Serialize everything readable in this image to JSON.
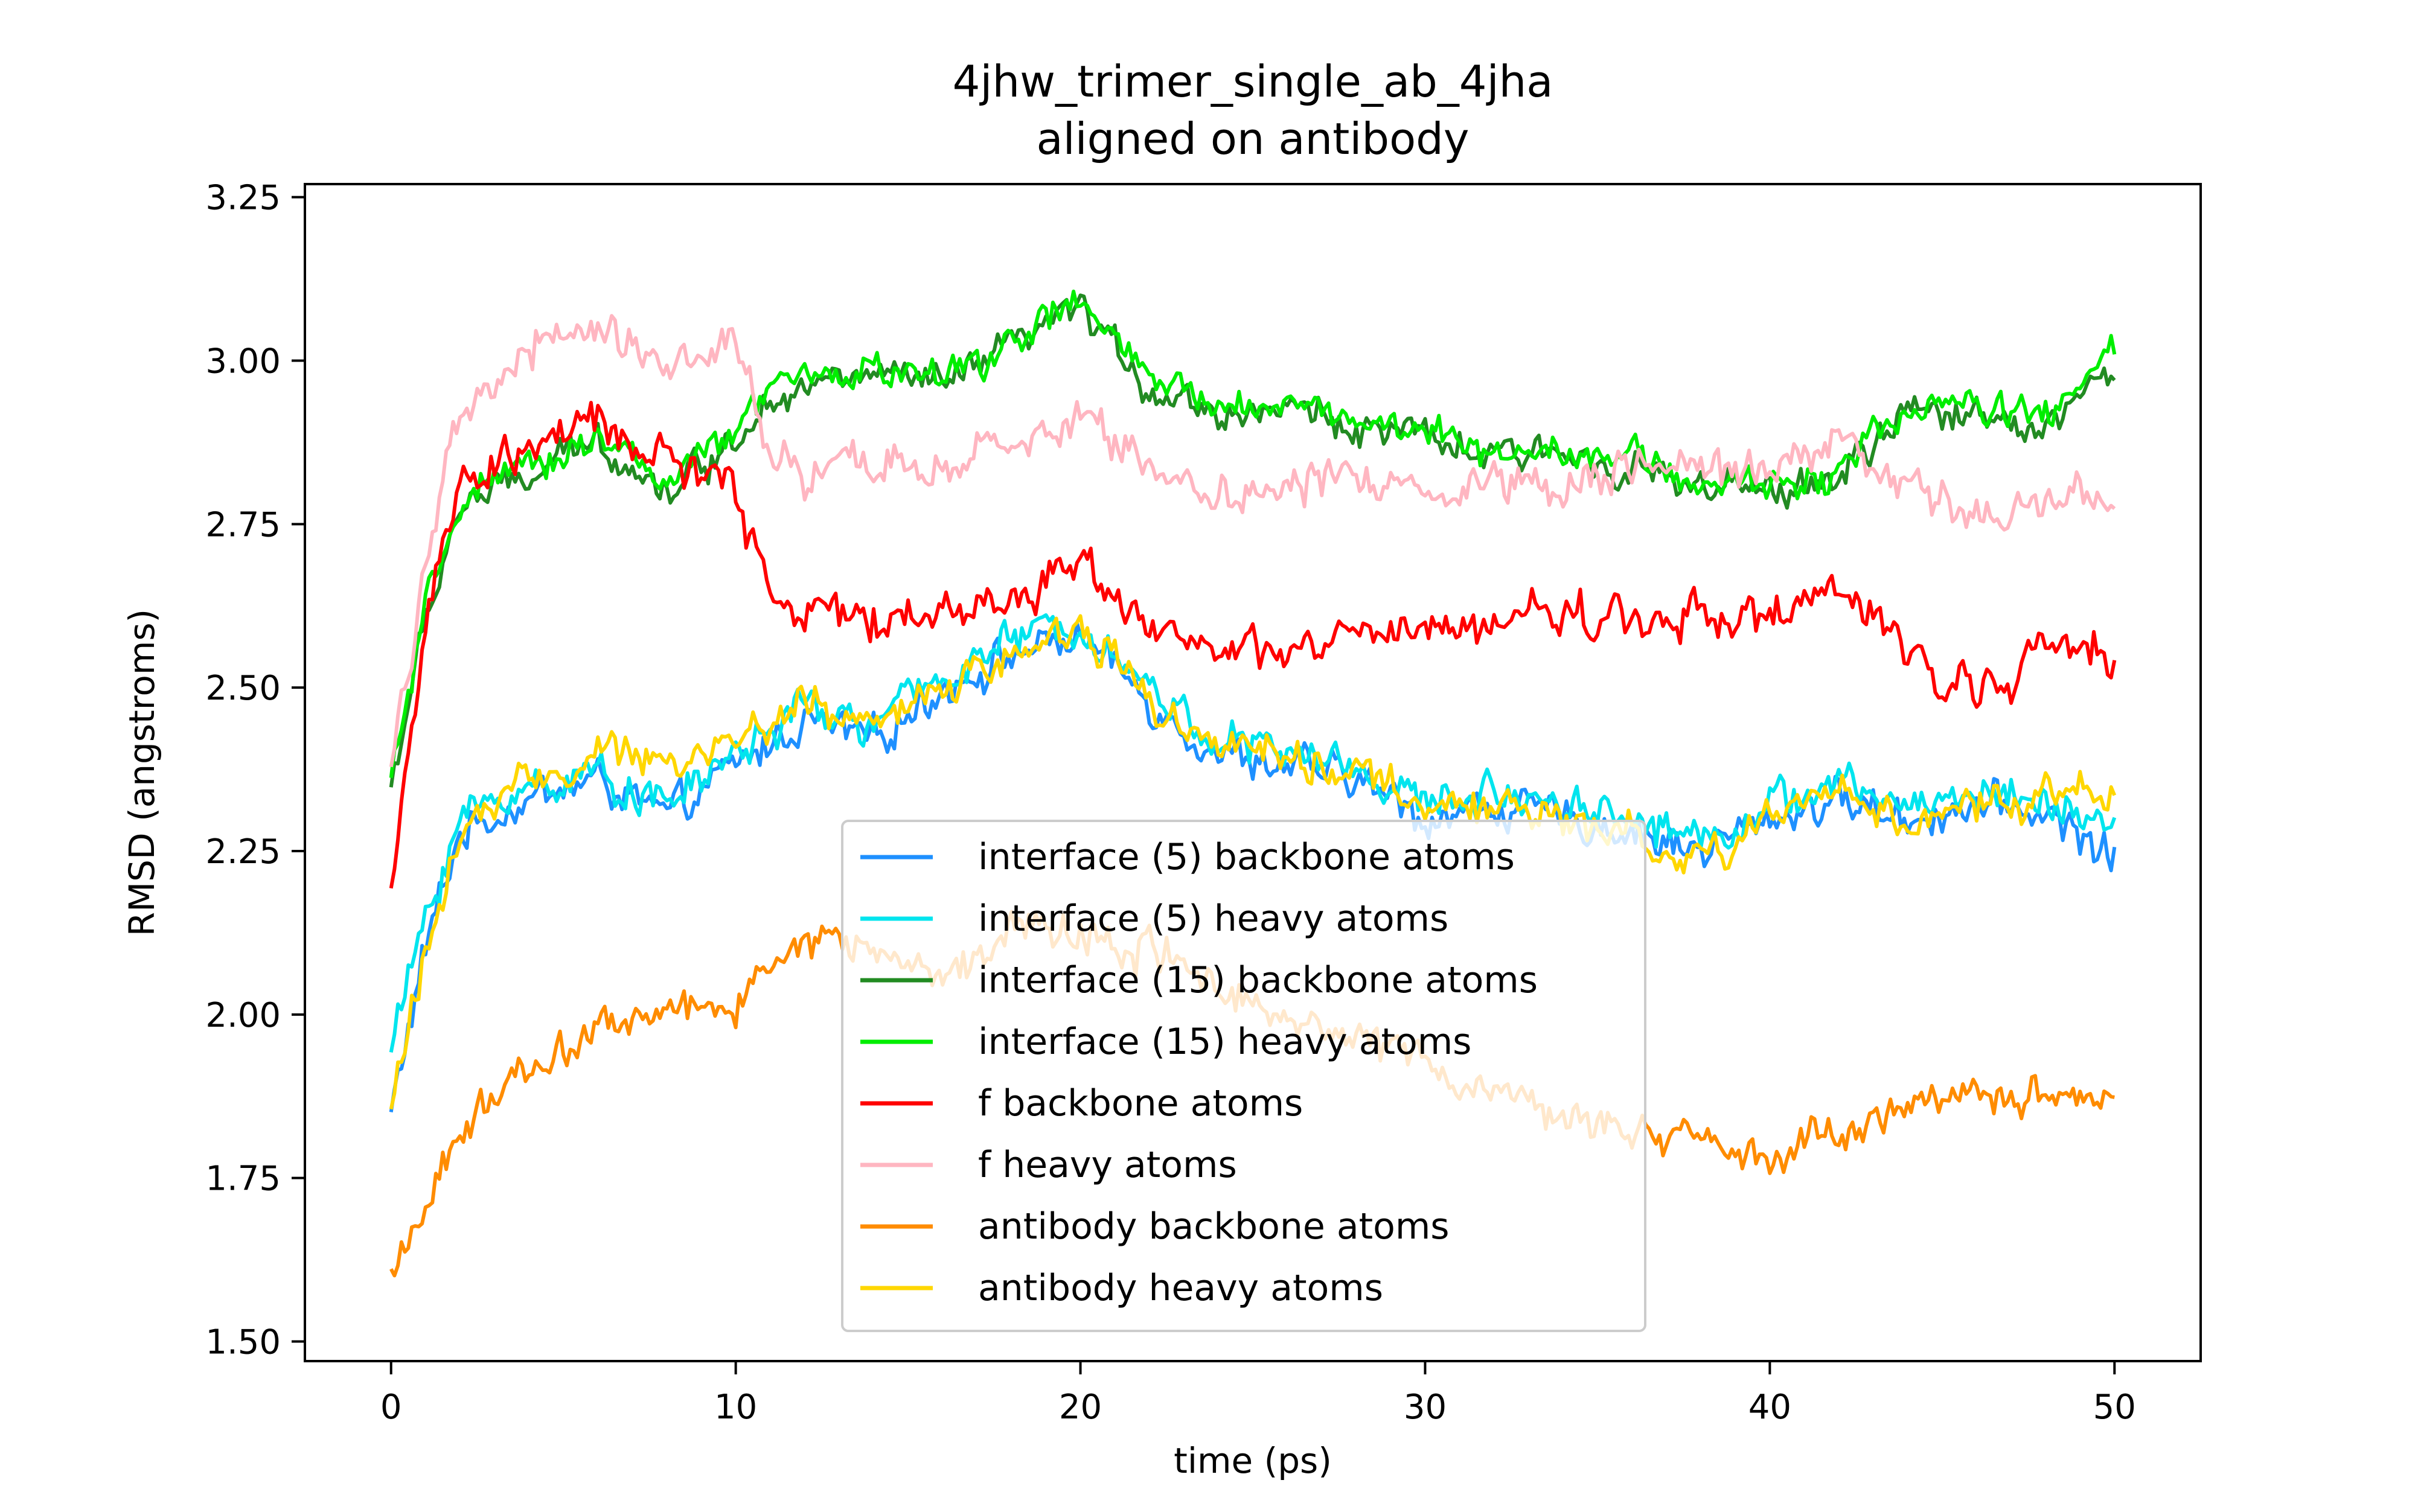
{
  "chart_data": {
    "type": "line",
    "title": "4jhw_trimer_single_ab_4jha",
    "subtitle": "aligned on antibody",
    "xlabel": "time (ps)",
    "ylabel": "RMSD (angstroms)",
    "xlim": [
      -2.5,
      52.5
    ],
    "ylim": [
      1.47,
      3.27
    ],
    "xticks": [
      "0",
      "10",
      "20",
      "30",
      "40",
      "50"
    ],
    "yticks": [
      "1.50",
      "1.75",
      "2.00",
      "2.25",
      "2.50",
      "2.75",
      "3.00",
      "3.25"
    ],
    "grid": false,
    "legend_position": "lower-center",
    "series": [
      {
        "name": "interface (5) backbone atoms",
        "color": "#1e90ff",
        "noise": 0.045,
        "points": [
          [
            0,
            1.85
          ],
          [
            1,
            2.1
          ],
          [
            2,
            2.28
          ],
          [
            4,
            2.33
          ],
          [
            6,
            2.36
          ],
          [
            8,
            2.3
          ],
          [
            10,
            2.38
          ],
          [
            12,
            2.45
          ],
          [
            14,
            2.42
          ],
          [
            16,
            2.5
          ],
          [
            18,
            2.55
          ],
          [
            20,
            2.58
          ],
          [
            22,
            2.48
          ],
          [
            24,
            2.4
          ],
          [
            26,
            2.38
          ],
          [
            28,
            2.36
          ],
          [
            30,
            2.3
          ],
          [
            32,
            2.32
          ],
          [
            34,
            2.3
          ],
          [
            36,
            2.28
          ],
          [
            38,
            2.25
          ],
          [
            40,
            2.3
          ],
          [
            42,
            2.33
          ],
          [
            44,
            2.3
          ],
          [
            46,
            2.32
          ],
          [
            48,
            2.31
          ],
          [
            50,
            2.24
          ]
        ]
      },
      {
        "name": "interface (5) heavy atoms",
        "color": "#00e5ee",
        "noise": 0.045,
        "points": [
          [
            0,
            1.95
          ],
          [
            1,
            2.15
          ],
          [
            2,
            2.3
          ],
          [
            4,
            2.35
          ],
          [
            6,
            2.37
          ],
          [
            8,
            2.32
          ],
          [
            10,
            2.4
          ],
          [
            12,
            2.47
          ],
          [
            14,
            2.44
          ],
          [
            16,
            2.52
          ],
          [
            18,
            2.57
          ],
          [
            20,
            2.6
          ],
          [
            22,
            2.5
          ],
          [
            24,
            2.42
          ],
          [
            26,
            2.4
          ],
          [
            28,
            2.38
          ],
          [
            30,
            2.32
          ],
          [
            32,
            2.34
          ],
          [
            34,
            2.33
          ],
          [
            36,
            2.3
          ],
          [
            38,
            2.27
          ],
          [
            40,
            2.32
          ],
          [
            42,
            2.35
          ],
          [
            44,
            2.32
          ],
          [
            46,
            2.34
          ],
          [
            48,
            2.33
          ],
          [
            50,
            2.28
          ]
        ]
      },
      {
        "name": "interface (15) backbone atoms",
        "color": "#228b22",
        "noise": 0.04,
        "points": [
          [
            0,
            2.35
          ],
          [
            1,
            2.6
          ],
          [
            2,
            2.78
          ],
          [
            4,
            2.82
          ],
          [
            6,
            2.88
          ],
          [
            8,
            2.8
          ],
          [
            10,
            2.88
          ],
          [
            11,
            2.95
          ],
          [
            12,
            2.96
          ],
          [
            14,
            2.98
          ],
          [
            16,
            2.96
          ],
          [
            18,
            3.02
          ],
          [
            20,
            3.08
          ],
          [
            22,
            2.96
          ],
          [
            24,
            2.92
          ],
          [
            26,
            2.93
          ],
          [
            28,
            2.9
          ],
          [
            30,
            2.88
          ],
          [
            32,
            2.85
          ],
          [
            34,
            2.86
          ],
          [
            36,
            2.84
          ],
          [
            38,
            2.8
          ],
          [
            40,
            2.8
          ],
          [
            42,
            2.82
          ],
          [
            44,
            2.92
          ],
          [
            46,
            2.92
          ],
          [
            48,
            2.9
          ],
          [
            50,
            2.99
          ]
        ]
      },
      {
        "name": "interface (15) heavy atoms",
        "color": "#00ee00",
        "noise": 0.04,
        "points": [
          [
            0,
            2.36
          ],
          [
            1,
            2.61
          ],
          [
            2,
            2.79
          ],
          [
            4,
            2.83
          ],
          [
            6,
            2.89
          ],
          [
            8,
            2.81
          ],
          [
            10,
            2.89
          ],
          [
            11,
            2.96
          ],
          [
            12,
            2.97
          ],
          [
            14,
            2.99
          ],
          [
            16,
            2.97
          ],
          [
            18,
            3.03
          ],
          [
            20,
            3.09
          ],
          [
            22,
            2.97
          ],
          [
            24,
            2.93
          ],
          [
            26,
            2.94
          ],
          [
            28,
            2.91
          ],
          [
            30,
            2.89
          ],
          [
            32,
            2.86
          ],
          [
            34,
            2.87
          ],
          [
            36,
            2.85
          ],
          [
            38,
            2.81
          ],
          [
            40,
            2.81
          ],
          [
            42,
            2.83
          ],
          [
            44,
            2.93
          ],
          [
            46,
            2.93
          ],
          [
            48,
            2.91
          ],
          [
            50,
            3.02
          ]
        ]
      },
      {
        "name": "f backbone atoms",
        "color": "#ff0000",
        "noise": 0.05,
        "points": [
          [
            0,
            2.2
          ],
          [
            1,
            2.6
          ],
          [
            2,
            2.8
          ],
          [
            4,
            2.87
          ],
          [
            6,
            2.9
          ],
          [
            8,
            2.85
          ],
          [
            10,
            2.8
          ],
          [
            11,
            2.65
          ],
          [
            12,
            2.62
          ],
          [
            14,
            2.6
          ],
          [
            16,
            2.62
          ],
          [
            18,
            2.63
          ],
          [
            20,
            2.7
          ],
          [
            22,
            2.6
          ],
          [
            24,
            2.55
          ],
          [
            26,
            2.55
          ],
          [
            28,
            2.58
          ],
          [
            30,
            2.58
          ],
          [
            32,
            2.6
          ],
          [
            34,
            2.62
          ],
          [
            36,
            2.6
          ],
          [
            38,
            2.62
          ],
          [
            40,
            2.6
          ],
          [
            42,
            2.65
          ],
          [
            44,
            2.55
          ],
          [
            46,
            2.5
          ],
          [
            48,
            2.55
          ],
          [
            50,
            2.56
          ]
        ]
      },
      {
        "name": "f heavy atoms",
        "color": "#ffb6c1",
        "noise": 0.05,
        "points": [
          [
            0,
            2.38
          ],
          [
            1,
            2.7
          ],
          [
            2,
            2.9
          ],
          [
            4,
            3.02
          ],
          [
            6,
            3.05
          ],
          [
            8,
            3.0
          ],
          [
            10,
            3.02
          ],
          [
            11,
            2.85
          ],
          [
            12,
            2.82
          ],
          [
            14,
            2.84
          ],
          [
            16,
            2.84
          ],
          [
            18,
            2.86
          ],
          [
            20,
            2.92
          ],
          [
            22,
            2.84
          ],
          [
            24,
            2.8
          ],
          [
            26,
            2.8
          ],
          [
            28,
            2.83
          ],
          [
            30,
            2.8
          ],
          [
            32,
            2.82
          ],
          [
            34,
            2.82
          ],
          [
            36,
            2.84
          ],
          [
            38,
            2.82
          ],
          [
            40,
            2.84
          ],
          [
            42,
            2.88
          ],
          [
            44,
            2.8
          ],
          [
            46,
            2.76
          ],
          [
            48,
            2.8
          ],
          [
            50,
            2.78
          ]
        ]
      },
      {
        "name": "antibody backbone atoms",
        "color": "#ff8c00",
        "noise": 0.045,
        "points": [
          [
            0,
            1.58
          ],
          [
            1,
            1.72
          ],
          [
            2,
            1.82
          ],
          [
            4,
            1.92
          ],
          [
            6,
            1.98
          ],
          [
            8,
            2.0
          ],
          [
            10,
            2.02
          ],
          [
            12,
            2.12
          ],
          [
            14,
            2.1
          ],
          [
            16,
            2.05
          ],
          [
            18,
            2.15
          ],
          [
            20,
            2.12
          ],
          [
            22,
            2.1
          ],
          [
            24,
            2.05
          ],
          [
            26,
            2.0
          ],
          [
            28,
            1.98
          ],
          [
            30,
            1.92
          ],
          [
            32,
            1.88
          ],
          [
            34,
            1.85
          ],
          [
            36,
            1.82
          ],
          [
            38,
            1.8
          ],
          [
            40,
            1.77
          ],
          [
            42,
            1.82
          ],
          [
            44,
            1.85
          ],
          [
            46,
            1.88
          ],
          [
            48,
            1.86
          ],
          [
            50,
            1.87
          ]
        ]
      },
      {
        "name": "antibody heavy atoms",
        "color": "#ffd700",
        "noise": 0.045,
        "points": [
          [
            0,
            1.86
          ],
          [
            1,
            2.1
          ],
          [
            2,
            2.27
          ],
          [
            4,
            2.36
          ],
          [
            6,
            2.4
          ],
          [
            8,
            2.38
          ],
          [
            10,
            2.42
          ],
          [
            12,
            2.48
          ],
          [
            14,
            2.44
          ],
          [
            16,
            2.5
          ],
          [
            18,
            2.55
          ],
          [
            20,
            2.6
          ],
          [
            22,
            2.48
          ],
          [
            24,
            2.42
          ],
          [
            26,
            2.4
          ],
          [
            28,
            2.36
          ],
          [
            30,
            2.32
          ],
          [
            32,
            2.32
          ],
          [
            34,
            2.3
          ],
          [
            36,
            2.28
          ],
          [
            38,
            2.24
          ],
          [
            40,
            2.3
          ],
          [
            42,
            2.34
          ],
          [
            44,
            2.3
          ],
          [
            46,
            2.32
          ],
          [
            48,
            2.34
          ],
          [
            50,
            2.34
          ]
        ]
      }
    ]
  }
}
